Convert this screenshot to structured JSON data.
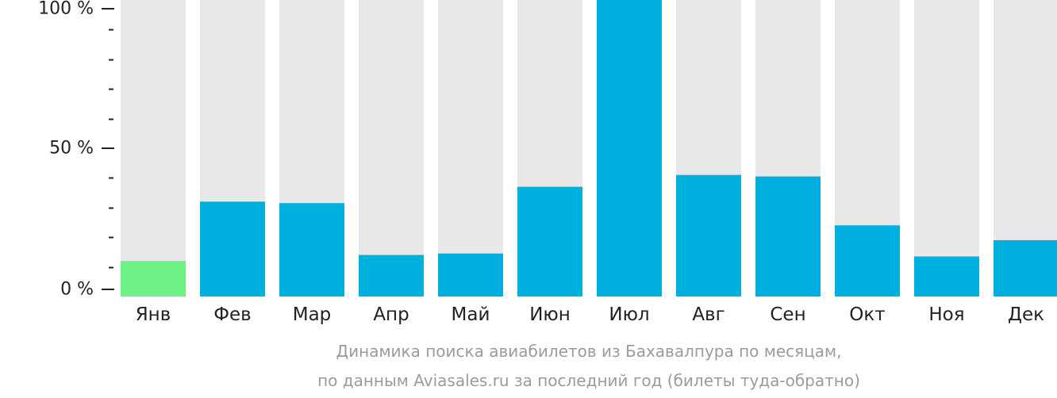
{
  "chart_data": {
    "type": "bar",
    "categories": [
      "Янв",
      "Фев",
      "Мар",
      "Апр",
      "Май",
      "Июн",
      "Июл",
      "Авг",
      "Сен",
      "Окт",
      "Ноя",
      "Дек"
    ],
    "values": [
      12,
      32,
      31.5,
      14,
      14.5,
      37,
      100,
      41,
      40.5,
      24,
      13.5,
      19
    ],
    "highlight_index": 0,
    "ylim": [
      0,
      100
    ],
    "y_ticks": [
      {
        "value": 0,
        "label": "0 %"
      },
      {
        "value": 50,
        "label": "50 %"
      },
      {
        "value": 100,
        "label": "100 %"
      }
    ],
    "y_minor_step": 10,
    "colors": {
      "bar": "#00b0de",
      "highlight": "#6ef285",
      "track": "#e8e8e8",
      "axis_text": "#222222",
      "caption": "#9b9b9b"
    }
  },
  "caption": {
    "line1": "Динамика поиска авиабилетов из Бахавалпура по месяцам,",
    "line2": "по данным Aviasales.ru за последний год (билеты туда-обратно)"
  }
}
